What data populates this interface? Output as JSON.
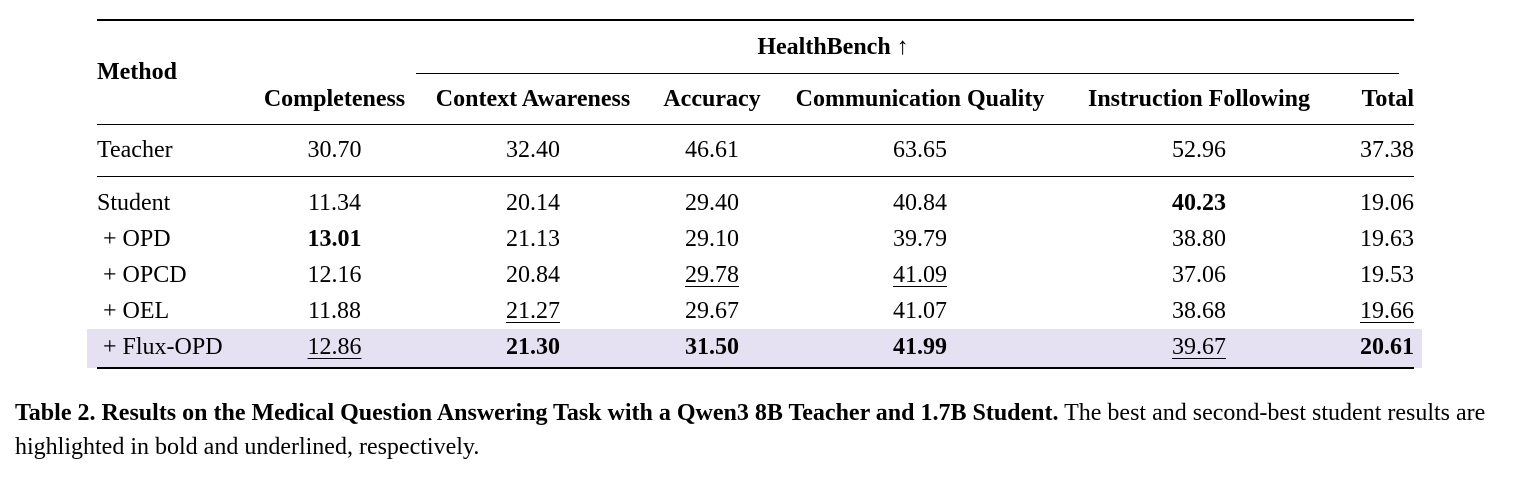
{
  "table": {
    "group_header": "HealthBench ↑",
    "method_header": "Method",
    "columns": [
      "Completeness",
      "Context Awareness",
      "Accuracy",
      "Communication Quality",
      "Instruction Following",
      "Total"
    ],
    "rows": [
      {
        "method": "Teacher",
        "values": [
          "30.70",
          "32.40",
          "46.61",
          "63.65",
          "52.96",
          "37.38"
        ],
        "bold": [],
        "underline": []
      },
      {
        "method": "Student",
        "values": [
          "11.34",
          "20.14",
          "29.40",
          "40.84",
          "40.23",
          "19.06"
        ],
        "bold": [
          4
        ],
        "underline": []
      },
      {
        "method": "+ OPD",
        "values": [
          "13.01",
          "21.13",
          "29.10",
          "39.79",
          "38.80",
          "19.63"
        ],
        "bold": [
          0
        ],
        "underline": []
      },
      {
        "method": "+ OPCD",
        "values": [
          "12.16",
          "20.84",
          "29.78",
          "41.09",
          "37.06",
          "19.53"
        ],
        "bold": [],
        "underline": [
          2,
          3
        ]
      },
      {
        "method": "+ OEL",
        "values": [
          "11.88",
          "21.27",
          "29.67",
          "41.07",
          "38.68",
          "19.66"
        ],
        "bold": [],
        "underline": [
          1,
          5
        ]
      },
      {
        "method": "+ Flux-OPD",
        "values": [
          "12.86",
          "21.30",
          "31.50",
          "41.99",
          "39.67",
          "20.61"
        ],
        "bold": [
          1,
          2,
          3,
          5
        ],
        "underline": [
          0,
          4
        ],
        "highlighted": true
      }
    ],
    "highlight_color": "#e6e1f2"
  },
  "caption": {
    "label": "Table 2. Results on the Medical Question Answering Task with a Qwen3 8B Teacher and 1.7B Student.",
    "text": "The best and second-best student results are highlighted in bold and underlined, respectively."
  }
}
